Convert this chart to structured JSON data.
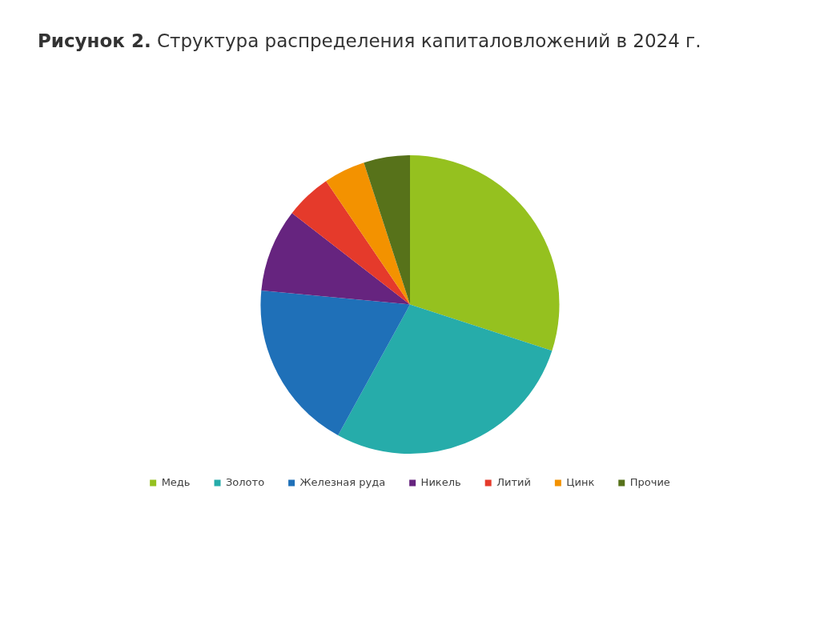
{
  "chart_data": {
    "type": "pie",
    "title": "Рисунок 2. Структура распределения капиталовложений в 2024 г.",
    "categories": [
      "Медь",
      "Золото",
      "Железная руда",
      "Никель",
      "Литий",
      "Цинк",
      "Прочие"
    ],
    "values": [
      30,
      28,
      18.5,
      9,
      5,
      4.5,
      5
    ],
    "colors": [
      "#95c11f",
      "#26acaa",
      "#1f70b8",
      "#66247f",
      "#e53a2b",
      "#f39200",
      "#57721a"
    ],
    "legend": "bottom"
  }
}
